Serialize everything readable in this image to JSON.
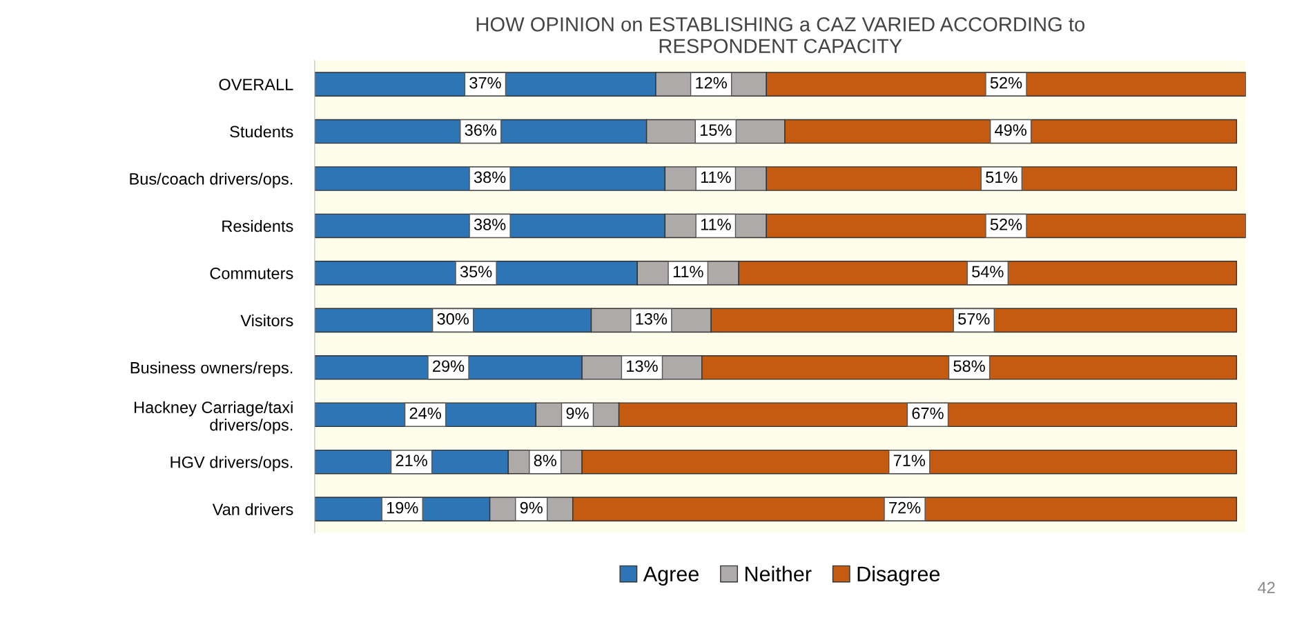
{
  "chart_data": {
    "type": "bar",
    "orientation": "horizontal",
    "stacked": true,
    "grid": false,
    "legend": "bottom",
    "title": "HOW OPINION on ESTABLISHING a CAZ VARIED ACCORDING to\nRESPONDENT CAPACITY",
    "categories": [
      "OVERALL",
      "Students",
      "Bus/coach drivers/ops.",
      "Residents",
      "Commuters",
      "Visitors",
      "Business owners/reps.",
      "Hackney Carriage/taxi\ndrivers/ops.",
      "HGV drivers/ops.",
      "Van drivers"
    ],
    "series": [
      {
        "name": "Agree",
        "color": "#2e75b6",
        "values": [
          37,
          36,
          38,
          38,
          35,
          30,
          29,
          24,
          21,
          19
        ],
        "value_labels": [
          "37%",
          "36%",
          "38%",
          "38%",
          "35%",
          "30%",
          "29%",
          "24%",
          "21%",
          "19%"
        ]
      },
      {
        "name": "Neither",
        "color": "#aeaaaa",
        "values": [
          12,
          15,
          11,
          11,
          11,
          13,
          13,
          9,
          8,
          9
        ],
        "value_labels": [
          "12%",
          "15%",
          "11%",
          "11%",
          "11%",
          "13%",
          "13%",
          "9%",
          "8%",
          "9%"
        ]
      },
      {
        "name": "Disagree",
        "color": "#c55a11",
        "values": [
          52,
          49,
          51,
          52,
          54,
          57,
          58,
          67,
          71,
          72
        ],
        "value_labels": [
          "52%",
          "49%",
          "51%",
          "52%",
          "54%",
          "57%",
          "58%",
          "67%",
          "71%",
          "72%"
        ]
      }
    ],
    "annotations": [
      "42"
    ]
  }
}
